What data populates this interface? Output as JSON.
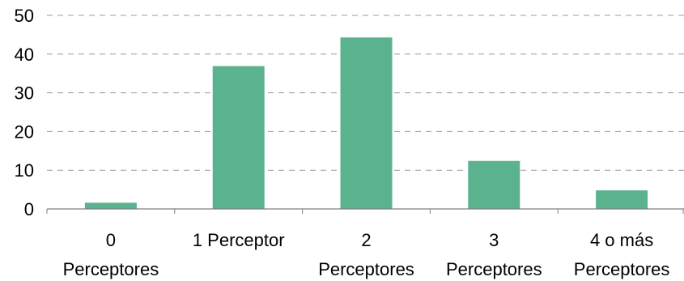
{
  "chart_data": {
    "type": "bar",
    "categories": [
      [
        "0",
        "Perceptores"
      ],
      [
        "1 Perceptor"
      ],
      [
        "2",
        "Perceptores"
      ],
      [
        "3",
        "Perceptores"
      ],
      [
        "4 o más",
        "Perceptores"
      ]
    ],
    "values": [
      1.6,
      36.9,
      44.3,
      12.4,
      4.8
    ],
    "ylim": [
      0,
      50
    ],
    "yticks": [
      0,
      10,
      20,
      30,
      40,
      50
    ],
    "grid": true,
    "legend": "none",
    "title": "",
    "xlabel": "",
    "ylabel": "",
    "colors": {
      "bar": "#5bb28e",
      "grid": "#9a9a9a",
      "axis": "#808080"
    }
  }
}
